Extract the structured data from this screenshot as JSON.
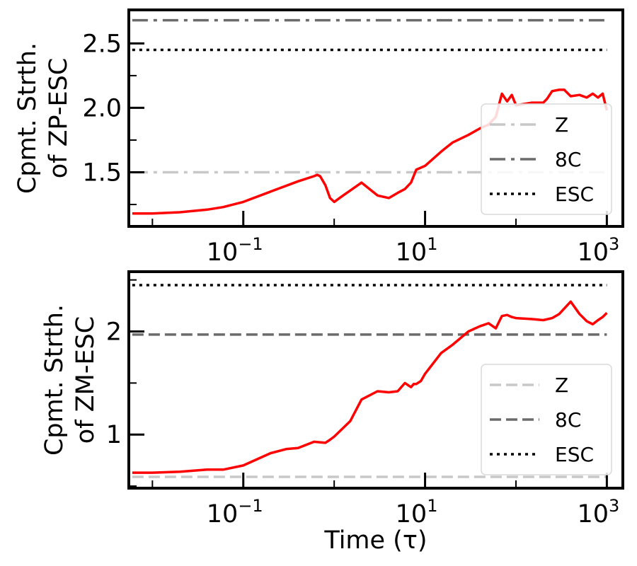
{
  "chart_data": [
    {
      "type": "line",
      "x_scale": "log",
      "xlim": [
        0.0055,
        1500
      ],
      "ylim": [
        1.08,
        2.76
      ],
      "xticks": [
        0.1,
        10,
        1000
      ],
      "xtick_labels": [
        [
          "10",
          "−1"
        ],
        [
          "10",
          "1"
        ],
        [
          "10",
          "3"
        ]
      ],
      "yticks": [
        1.5,
        2.0,
        2.5
      ],
      "ytick_labels": [
        "1.5",
        "2.0",
        "2.5"
      ],
      "yminor": [
        1.25,
        1.75,
        2.25
      ],
      "ylabel": [
        "Cpmt. Strth.",
        "of ZP-ESC"
      ],
      "xlabel": "",
      "legend_position": "lower-right",
      "series": [
        {
          "name": "",
          "color": "#ff0000",
          "style": "solid",
          "x": [
            0.006,
            0.01,
            0.02,
            0.04,
            0.06,
            0.1,
            0.2,
            0.4,
            0.6,
            0.65,
            0.7,
            0.8,
            0.9,
            1.0,
            1.2,
            2.0,
            3.0,
            4.0,
            5.0,
            6.0,
            7.0,
            8.0,
            10,
            15,
            20,
            30,
            40,
            50,
            60,
            70,
            80,
            90,
            100,
            150,
            200,
            220,
            250,
            300,
            340,
            400,
            500,
            600,
            700,
            800,
            900,
            1000
          ],
          "y": [
            1.18,
            1.18,
            1.19,
            1.21,
            1.23,
            1.27,
            1.35,
            1.43,
            1.47,
            1.48,
            1.47,
            1.4,
            1.3,
            1.27,
            1.31,
            1.42,
            1.32,
            1.3,
            1.34,
            1.37,
            1.42,
            1.52,
            1.55,
            1.66,
            1.73,
            1.79,
            1.84,
            1.87,
            1.93,
            2.11,
            2.05,
            2.1,
            2.02,
            2.04,
            2.04,
            2.07,
            2.13,
            2.14,
            2.14,
            2.09,
            2.1,
            2.08,
            2.11,
            2.08,
            2.11,
            1.98
          ]
        }
      ],
      "hlines": [
        {
          "name": "Z",
          "y": 1.5,
          "color": "#c8c8c8",
          "style": "dashdot"
        },
        {
          "name": "8C",
          "y": 2.68,
          "color": "#6b6b6b",
          "style": "dashdot"
        },
        {
          "name": "ESC",
          "y": 2.45,
          "color": "#000000",
          "style": "dotted"
        }
      ]
    },
    {
      "type": "line",
      "x_scale": "log",
      "xlim": [
        0.0055,
        1500
      ],
      "ylim": [
        0.48,
        2.58
      ],
      "xticks": [
        0.1,
        10,
        1000
      ],
      "xtick_labels": [
        [
          "10",
          "−1"
        ],
        [
          "10",
          "1"
        ],
        [
          "10",
          "3"
        ]
      ],
      "yticks": [
        1,
        2
      ],
      "ytick_labels": [
        "1",
        "2"
      ],
      "yminor": [
        0.5,
        1.5,
        2.5
      ],
      "ylabel": [
        "Cpmt. Strth.",
        "of ZM-ESC"
      ],
      "xlabel": "Time (τ)",
      "legend_position": "lower-right",
      "series": [
        {
          "name": "",
          "color": "#ff0000",
          "style": "solid",
          "x": [
            0.006,
            0.01,
            0.02,
            0.04,
            0.06,
            0.1,
            0.2,
            0.3,
            0.4,
            0.6,
            0.8,
            0.9,
            1.0,
            1.5,
            2.0,
            3.0,
            4.0,
            5.0,
            6.0,
            7.0,
            7.5,
            8.0,
            9.0,
            10,
            15,
            20,
            30,
            40,
            50,
            60,
            70,
            80,
            90,
            100,
            150,
            200,
            250,
            300,
            400,
            500,
            600,
            700,
            800,
            900,
            1000
          ],
          "y": [
            0.63,
            0.63,
            0.64,
            0.66,
            0.66,
            0.7,
            0.82,
            0.86,
            0.87,
            0.93,
            0.92,
            0.95,
            0.98,
            1.13,
            1.34,
            1.42,
            1.41,
            1.42,
            1.5,
            1.46,
            1.49,
            1.49,
            1.52,
            1.59,
            1.79,
            1.87,
            2.0,
            2.05,
            2.08,
            2.03,
            2.15,
            2.16,
            2.14,
            2.13,
            2.12,
            2.11,
            2.13,
            2.17,
            2.29,
            2.17,
            2.1,
            2.07,
            2.11,
            2.14,
            2.18
          ]
        }
      ],
      "hlines": [
        {
          "name": "Z",
          "y": 0.59,
          "color": "#c8c8c8",
          "style": "dashed"
        },
        {
          "name": "8C",
          "y": 1.97,
          "color": "#6b6b6b",
          "style": "dashed"
        },
        {
          "name": "ESC",
          "y": 2.45,
          "color": "#000000",
          "style": "dotted"
        }
      ]
    }
  ]
}
